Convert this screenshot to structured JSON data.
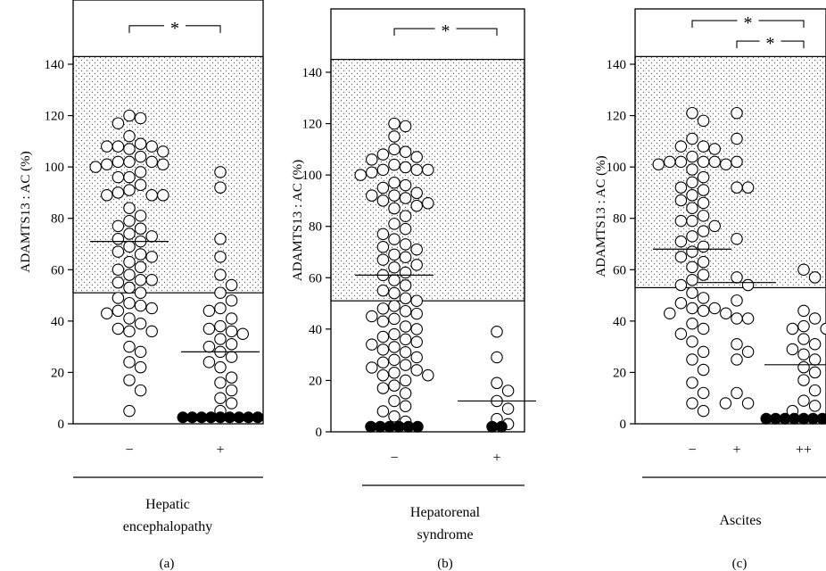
{
  "chart_data": [
    {
      "type": "scatter",
      "panel_label": "(a)",
      "ylabel": "ADAMTS13 : AC (%)",
      "yticks": [
        0,
        20,
        40,
        60,
        80,
        100,
        120,
        140
      ],
      "ylim": [
        0,
        160
      ],
      "normal_range": [
        51,
        143
      ],
      "categories": [
        "−",
        "+"
      ],
      "group_label": [
        "Hepatic",
        "encephalopathy"
      ],
      "significance": [
        {
          "from": 0,
          "to": 1,
          "label": "*",
          "level": 155
        }
      ],
      "series": [
        {
          "values": [
            120,
            119,
            117,
            112,
            109,
            108,
            108,
            108,
            107,
            106,
            104,
            102,
            102,
            102,
            101,
            101,
            100,
            98,
            96,
            96,
            93,
            91,
            90,
            89,
            89,
            89,
            84,
            81,
            79,
            77,
            76,
            74,
            73,
            72,
            71,
            69,
            67,
            66,
            65,
            63,
            61,
            60,
            58,
            56,
            56,
            55,
            53,
            51,
            49,
            47,
            46,
            45,
            44,
            43,
            41,
            39,
            37,
            36,
            36,
            30,
            28,
            24,
            22,
            17,
            13,
            5
          ],
          "median": 71,
          "filled_zero": 0
        },
        {
          "values": [
            98,
            92,
            72,
            65,
            58,
            54,
            51,
            48,
            45,
            44,
            41,
            38,
            37,
            36,
            35,
            33,
            31,
            30,
            28,
            26,
            24,
            22,
            18,
            16,
            13,
            10,
            8,
            5
          ],
          "median": 28,
          "filled_zero": 9
        }
      ]
    },
    {
      "type": "scatter",
      "panel_label": "(b)",
      "ylabel": "ADAMTS13 : AC (%)",
      "yticks": [
        0,
        20,
        40,
        60,
        80,
        100,
        120,
        140
      ],
      "ylim": [
        0,
        160
      ],
      "normal_range": [
        51,
        145
      ],
      "categories": [
        "−",
        "+"
      ],
      "group_label": [
        "Hepatorenal",
        "syndrome"
      ],
      "significance": [
        {
          "from": 0,
          "to": 1,
          "label": "*",
          "level": 157
        }
      ],
      "series": [
        {
          "values": [
            120,
            119,
            115,
            110,
            109,
            108,
            107,
            106,
            104,
            103,
            102,
            102,
            102,
            101,
            100,
            97,
            96,
            95,
            93,
            92,
            92,
            91,
            90,
            89,
            88,
            87,
            84,
            81,
            79,
            77,
            75,
            73,
            72,
            71,
            69,
            68,
            67,
            65,
            64,
            62,
            61,
            59,
            57,
            55,
            54,
            52,
            51,
            49,
            48,
            47,
            46,
            45,
            44,
            43,
            41,
            40,
            38,
            37,
            36,
            35,
            34,
            33,
            32,
            31,
            29,
            28,
            27,
            26,
            25,
            24,
            23,
            22,
            22,
            20,
            18,
            17,
            15,
            12,
            10,
            8,
            6,
            4
          ],
          "median": 61,
          "filled_zero": 6
        },
        {
          "values": [
            39,
            29,
            19,
            16,
            12,
            9,
            5,
            3
          ],
          "median": 12,
          "filled_zero": 2
        }
      ]
    },
    {
      "type": "scatter",
      "panel_label": "(c)",
      "ylabel": "ADAMTS13 : AC (%)",
      "yticks": [
        0,
        20,
        40,
        60,
        80,
        100,
        120,
        140
      ],
      "ylim": [
        0,
        160
      ],
      "normal_range": [
        53,
        143
      ],
      "categories": [
        "−",
        "+",
        "++"
      ],
      "group_label": [
        "Ascites"
      ],
      "significance": [
        {
          "from": 0,
          "to": 2,
          "label": "*",
          "level": 157
        },
        {
          "from": 1,
          "to": 2,
          "label": "*",
          "level": 149
        }
      ],
      "series": [
        {
          "values": [
            121,
            118,
            111,
            108,
            108,
            107,
            104,
            102,
            102,
            102,
            102,
            101,
            101,
            99,
            96,
            94,
            92,
            91,
            89,
            87,
            86,
            84,
            81,
            79,
            79,
            77,
            75,
            73,
            71,
            69,
            67,
            65,
            63,
            61,
            58,
            56,
            54,
            51,
            49,
            47,
            45,
            45,
            44,
            43,
            43,
            39,
            37,
            35,
            32,
            28,
            25,
            21,
            16,
            12,
            8,
            5
          ],
          "median": 68,
          "filled_zero": 0
        },
        {
          "values": [
            121,
            111,
            102,
            92,
            92,
            72,
            57,
            54,
            48,
            41,
            41,
            31,
            28,
            25,
            12,
            8,
            8
          ],
          "median": 55,
          "filled_zero": 0
        },
        {
          "values": [
            60,
            57,
            44,
            41,
            38,
            37,
            37,
            33,
            31,
            29,
            27,
            25,
            22,
            20,
            17,
            13,
            9,
            7,
            5
          ],
          "median": 23,
          "filled_zero": 9
        }
      ]
    }
  ]
}
